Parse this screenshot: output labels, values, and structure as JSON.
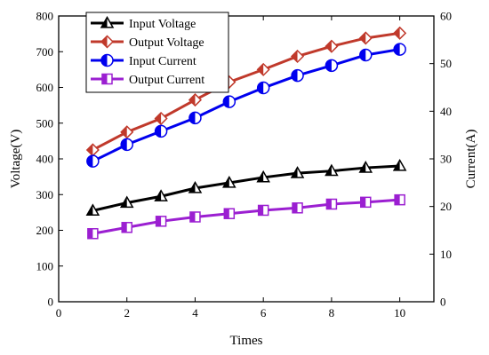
{
  "chart_data": {
    "type": "line",
    "x": [
      1,
      2,
      3,
      4,
      5,
      6,
      7,
      8,
      9,
      10
    ],
    "xlabel": "Times",
    "ylabel": "Voltage(V)",
    "y2label": "Current(A)",
    "xlim": [
      0,
      11
    ],
    "ylim": [
      0,
      800
    ],
    "y2lim": [
      0,
      60
    ],
    "xticks": [
      0,
      2,
      4,
      6,
      8,
      10
    ],
    "yticks": [
      0,
      100,
      200,
      300,
      400,
      500,
      600,
      700,
      800
    ],
    "y2ticks": [
      0,
      10,
      20,
      30,
      40,
      50,
      60
    ],
    "grid": false,
    "legend_position": "top-left",
    "series": [
      {
        "name": "Input Voltage",
        "axis": "left",
        "color": "#000000",
        "marker": "triangle",
        "values": [
          255,
          277,
          295,
          318,
          333,
          348,
          360,
          366,
          375,
          380
        ]
      },
      {
        "name": "Output Voltage",
        "axis": "left",
        "color": "#c0392b",
        "marker": "diamond",
        "values": [
          425,
          475,
          513,
          565,
          615,
          650,
          687,
          715,
          738,
          752
        ]
      },
      {
        "name": "Input Current",
        "axis": "right",
        "color": "#0000ee",
        "marker": "circle",
        "values": [
          29.5,
          33.0,
          35.8,
          38.6,
          42.0,
          44.9,
          47.5,
          49.6,
          51.8,
          53.0
        ]
      },
      {
        "name": "Output Current",
        "axis": "right",
        "color": "#9b1fd1",
        "marker": "square",
        "values": [
          14.3,
          15.6,
          16.9,
          17.8,
          18.5,
          19.2,
          19.7,
          20.5,
          20.9,
          21.4
        ]
      }
    ]
  }
}
